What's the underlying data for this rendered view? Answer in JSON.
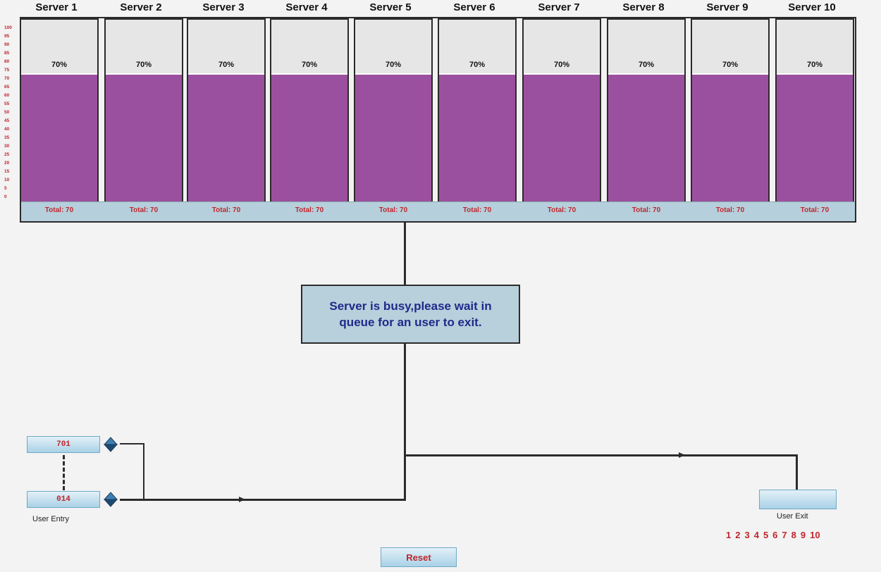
{
  "servers": [
    {
      "name": "Server 1",
      "percent_label": "70%",
      "total_label": "Total: 70",
      "load_fraction": 0.7
    },
    {
      "name": "Server 2",
      "percent_label": "70%",
      "total_label": "Total: 70",
      "load_fraction": 0.7
    },
    {
      "name": "Server 3",
      "percent_label": "70%",
      "total_label": "Total: 70",
      "load_fraction": 0.7
    },
    {
      "name": "Server 4",
      "percent_label": "70%",
      "total_label": "Total: 70",
      "load_fraction": 0.7
    },
    {
      "name": "Server 5",
      "percent_label": "70%",
      "total_label": "Total: 70",
      "load_fraction": 0.7
    },
    {
      "name": "Server 6",
      "percent_label": "70%",
      "total_label": "Total: 70",
      "load_fraction": 0.7
    },
    {
      "name": "Server 7",
      "percent_label": "70%",
      "total_label": "Total: 70",
      "load_fraction": 0.7
    },
    {
      "name": "Server 8",
      "percent_label": "70%",
      "total_label": "Total: 70",
      "load_fraction": 0.7
    },
    {
      "name": "Server 9",
      "percent_label": "70%",
      "total_label": "Total: 70",
      "load_fraction": 0.7
    },
    {
      "name": "Server 10",
      "percent_label": "70%",
      "total_label": "Total: 70",
      "load_fraction": 0.7
    }
  ],
  "scale_ticks": [
    "100",
    "95",
    "90",
    "85",
    "80",
    "75",
    "70",
    "65",
    "60",
    "55",
    "50",
    "45",
    "40",
    "35",
    "30",
    "25",
    "20",
    "15",
    "10",
    "5",
    "0"
  ],
  "status_message": "Server is busy,please wait in queue for an user to exit.",
  "entry": {
    "top_counter": "701",
    "bottom_counter": "014",
    "label": "User Entry"
  },
  "exit": {
    "label": "User Exit",
    "numbers": [
      "1",
      "2",
      "3",
      "4",
      "5",
      "6",
      "7",
      "8",
      "9",
      "10"
    ]
  },
  "reset_label": "Reset",
  "colors": {
    "fill": "#9b509f",
    "empty": "#e6e6e6",
    "strip": "#b6cfdc",
    "status_text": "#1f2a8a",
    "red_text": "#c0262d"
  },
  "icons": [
    "up-down-arrow-icon",
    "arrow-right-icon"
  ]
}
